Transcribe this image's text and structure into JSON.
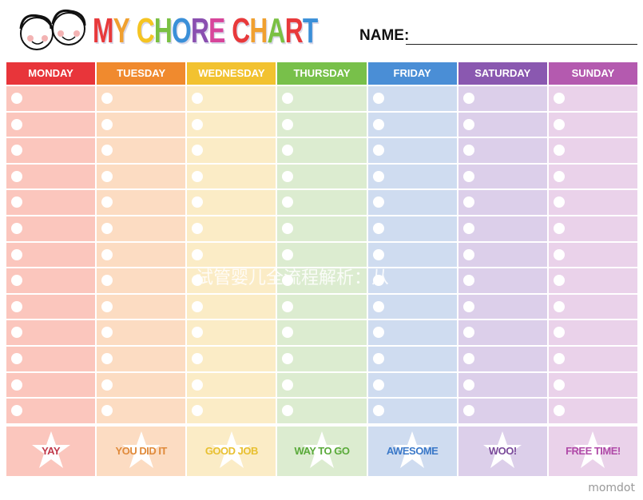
{
  "title": {
    "letters": [
      "M",
      "Y",
      " ",
      "C",
      "H",
      "O",
      "R",
      "E",
      " ",
      "C",
      "H",
      "A",
      "R",
      "T"
    ],
    "colors": [
      "#e8393b",
      "#f0a030",
      "#fff",
      "#f5c422",
      "#7ac043",
      "#3a8fd8",
      "#8a4fb0",
      "#d7459a",
      "#fff",
      "#e8393b",
      "#f0a030",
      "#7ac043",
      "#e8393b",
      "#3a8fd8"
    ]
  },
  "name_label": "NAME:",
  "days": [
    {
      "label": "MONDAY",
      "color": "#e8353a",
      "bg": "#fbc6bd",
      "reward": "YAY",
      "reward_color": "#c0394a"
    },
    {
      "label": "TUESDAY",
      "color": "#f08a2e",
      "bg": "#fcdcc2",
      "reward": "YOU DID IT",
      "reward_color": "#e08a3a"
    },
    {
      "label": "WEDNESDAY",
      "color": "#f2c230",
      "bg": "#fbecc6",
      "reward": "GOOD JOB",
      "reward_color": "#e8c030"
    },
    {
      "label": "THURSDAY",
      "color": "#78c04a",
      "bg": "#dcecd0",
      "reward": "WAY TO GO",
      "reward_color": "#5aaa3a"
    },
    {
      "label": "FRIDAY",
      "color": "#4a8ed6",
      "bg": "#cfdcf0",
      "reward": "AWESOME",
      "reward_color": "#3a78c8"
    },
    {
      "label": "SATURDAY",
      "color": "#8a58b0",
      "bg": "#dccfea",
      "reward": "WOO!",
      "reward_color": "#7a4a9a"
    },
    {
      "label": "SUNDAY",
      "color": "#b45aaf",
      "bg": "#ead2ea",
      "reward": "FREE TIME!",
      "reward_color": "#b04aa8"
    }
  ],
  "rows": 13,
  "watermark": "试管婴儿全流程解析：从",
  "brand": "momdot"
}
